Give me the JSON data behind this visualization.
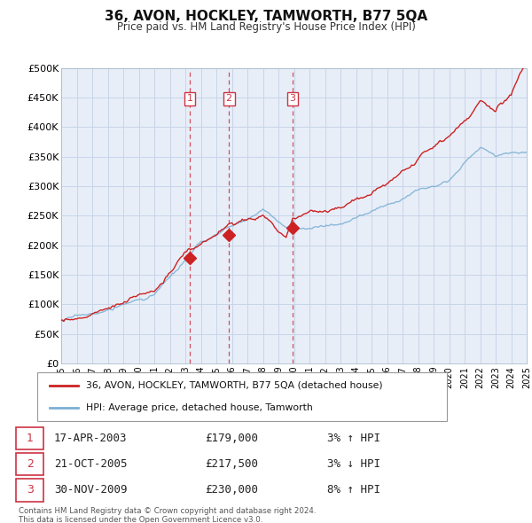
{
  "title": "36, AVON, HOCKLEY, TAMWORTH, B77 5QA",
  "subtitle": "Price paid vs. HM Land Registry's House Price Index (HPI)",
  "xlim": [
    1995,
    2025
  ],
  "ylim": [
    0,
    500000
  ],
  "yticks": [
    0,
    50000,
    100000,
    150000,
    200000,
    250000,
    300000,
    350000,
    400000,
    450000,
    500000
  ],
  "ytick_labels": [
    "£0",
    "£50K",
    "£100K",
    "£150K",
    "£200K",
    "£250K",
    "£300K",
    "£350K",
    "£400K",
    "£450K",
    "£500K"
  ],
  "xticks": [
    1995,
    1996,
    1997,
    1998,
    1999,
    2000,
    2001,
    2002,
    2003,
    2004,
    2005,
    2006,
    2007,
    2008,
    2009,
    2010,
    2011,
    2012,
    2013,
    2014,
    2015,
    2016,
    2017,
    2018,
    2019,
    2020,
    2021,
    2022,
    2023,
    2024,
    2025
  ],
  "hpi_color": "#7bafd4",
  "price_color": "#cc2222",
  "marker_color": "#cc2222",
  "vline_color": "#cc3344",
  "grid_color": "#c8d4e8",
  "bg_color": "#e8eef8",
  "legend_label_price": "36, AVON, HOCKLEY, TAMWORTH, B77 5QA (detached house)",
  "legend_label_hpi": "HPI: Average price, detached house, Tamworth",
  "sales": [
    {
      "num": 1,
      "date": "17-APR-2003",
      "year": 2003.29,
      "price": 179000,
      "hpi_pct": "3%",
      "hpi_dir": "↑",
      "hpi_dir2": "↑"
    },
    {
      "num": 2,
      "date": "21-OCT-2005",
      "year": 2005.81,
      "price": 217500,
      "hpi_pct": "3%",
      "hpi_dir": "↓",
      "hpi_dir2": "↓"
    },
    {
      "num": 3,
      "date": "30-NOV-2009",
      "year": 2009.92,
      "price": 230000,
      "hpi_pct": "8%",
      "hpi_dir": "↑",
      "hpi_dir2": "↑"
    }
  ],
  "footer_line1": "Contains HM Land Registry data © Crown copyright and database right 2024.",
  "footer_line2": "This data is licensed under the Open Government Licence v3.0."
}
